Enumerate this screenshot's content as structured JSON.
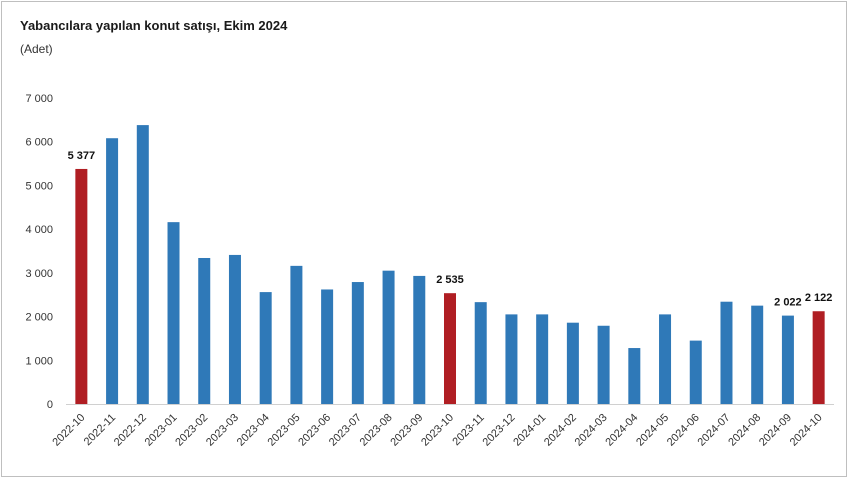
{
  "chart_data": {
    "type": "bar",
    "title": "Yabancılara yapılan konut satışı, Ekim 2024",
    "subtitle": "(Adet)",
    "xlabel": "",
    "ylabel": "",
    "ylim": [
      0,
      7000
    ],
    "yticks": [
      0,
      1000,
      2000,
      3000,
      4000,
      5000,
      6000,
      7000
    ],
    "ytick_labels": [
      "0",
      "1 000",
      "2 000",
      "3 000",
      "4 000",
      "5 000",
      "6 000",
      "7 000"
    ],
    "grid": false,
    "legend": "none",
    "categories": [
      "2022-10",
      "2022-11",
      "2022-12",
      "2023-01",
      "2023-02",
      "2023-03",
      "2023-04",
      "2023-05",
      "2023-06",
      "2023-07",
      "2023-08",
      "2023-09",
      "2023-10",
      "2023-11",
      "2023-12",
      "2024-01",
      "2024-02",
      "2024-03",
      "2024-04",
      "2024-05",
      "2024-06",
      "2024-07",
      "2024-08",
      "2024-09",
      "2024-10"
    ],
    "values": [
      5377,
      6080,
      6380,
      4160,
      3340,
      3410,
      2560,
      3160,
      2620,
      2790,
      3050,
      2930,
      2535,
      2330,
      2050,
      2050,
      1860,
      1790,
      1280,
      2050,
      1450,
      2340,
      2250,
      2022,
      2122
    ],
    "highlighted": [
      true,
      false,
      false,
      false,
      false,
      false,
      false,
      false,
      false,
      false,
      false,
      false,
      true,
      false,
      false,
      false,
      false,
      false,
      false,
      false,
      false,
      false,
      false,
      false,
      true
    ],
    "data_labels": [
      {
        "index": 0,
        "text": "5 377"
      },
      {
        "index": 12,
        "text": "2 535"
      },
      {
        "index": 23,
        "text": "2 022"
      },
      {
        "index": 24,
        "text": "2 122"
      }
    ],
    "colors": {
      "bar": "#2f79b8",
      "highlight": "#b01e23",
      "axis": "#d0d0d0"
    }
  }
}
